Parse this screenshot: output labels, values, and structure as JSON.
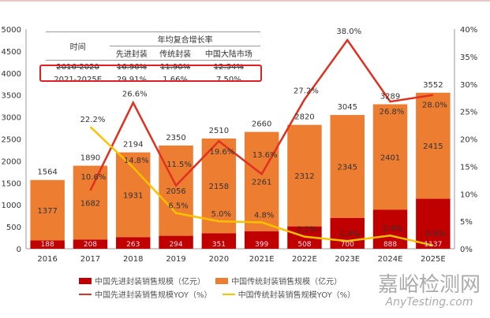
{
  "chart_data": {
    "type": "bar",
    "stacked": true,
    "categories": [
      "2016",
      "2017",
      "2018",
      "2019",
      "2020",
      "2021E",
      "2022E",
      "2023E",
      "2024E",
      "2025E"
    ],
    "series": [
      {
        "name": "中国先进封装销售规模（亿元）",
        "type": "bar",
        "axis": "left",
        "color": "#c00000",
        "values": [
          188,
          208,
          263,
          294,
          351,
          399,
          508,
          700,
          888,
          1137
        ]
      },
      {
        "name": "中国传统封装销售规模（亿元）",
        "type": "bar",
        "axis": "left",
        "color": "#ed7d31",
        "values": [
          1377,
          1682,
          1931,
          2056,
          2158,
          2261,
          2312,
          2345,
          2401,
          2415
        ]
      },
      {
        "name": "中国先进封装销售规模YOY（%）",
        "type": "line",
        "axis": "right",
        "color": "#e03020",
        "values": [
          null,
          10.6,
          26.6,
          11.5,
          19.6,
          13.6,
          27.2,
          38.0,
          26.8,
          28.0
        ]
      },
      {
        "name": "中国传统封装销售规模YOY（%）",
        "type": "line",
        "axis": "right",
        "color": "#ffc000",
        "values": [
          null,
          22.2,
          14.8,
          6.5,
          5.0,
          4.8,
          2.2,
          1.4,
          2.4,
          0.6
        ]
      }
    ],
    "totals": [
      1564,
      1890,
      2194,
      2350,
      2510,
      2660,
      2820,
      3045,
      3289,
      3552
    ],
    "adv_labels": [
      "188",
      "208",
      "263",
      "294",
      "351",
      "399",
      "508",
      "700",
      "888",
      "1137"
    ],
    "trad_labels": [
      "1377",
      "1682",
      "1931",
      "2056",
      "2158",
      "2261",
      "2312",
      "2345",
      "2401",
      "2415"
    ],
    "red_yoy_labels": [
      "",
      "",
      "26.6%",
      "",
      "",
      "",
      "27.2%",
      "38.0%",
      "26.8%",
      "28.0%"
    ],
    "yellow_yoy_labels": [
      "",
      "22.2%",
      "",
      "6.5%",
      "5.0%",
      "4.8%",
      "2.2%",
      "1.4%",
      "2.4%",
      "0.6%"
    ],
    "orange_pct_labels": [
      "",
      "10.6%",
      "14.8%",
      "11.5%",
      "19.6%",
      "13.6%",
      "",
      "",
      "",
      ""
    ],
    "ylim": [
      0,
      5000
    ],
    "y2lim": [
      0,
      40
    ],
    "yticks": [
      "0",
      "500",
      "1000",
      "1500",
      "2000",
      "2500",
      "3000",
      "3500",
      "4000",
      "4500",
      "5000"
    ],
    "y2ticks": [
      "0%",
      "5%",
      "10%",
      "15%",
      "20%",
      "25%",
      "30%",
      "35%",
      "40%"
    ],
    "legend_position": "bottom"
  },
  "table": {
    "header_time": "时间",
    "header_group": "年均复合增长率",
    "cols": [
      "先进封装",
      "传统封装",
      "中国大陆市场"
    ],
    "rows": [
      {
        "period": "2016-2020",
        "adv": "16.96%",
        "trad": "11.90%",
        "cn": "12.54%"
      },
      {
        "period": "2021-2025E",
        "adv": "29.91%",
        "trad": "1.66%",
        "cn": "7.50%"
      }
    ]
  },
  "watermark": {
    "cn": "嘉峪检测网",
    "en": "AnyTesting.com"
  }
}
